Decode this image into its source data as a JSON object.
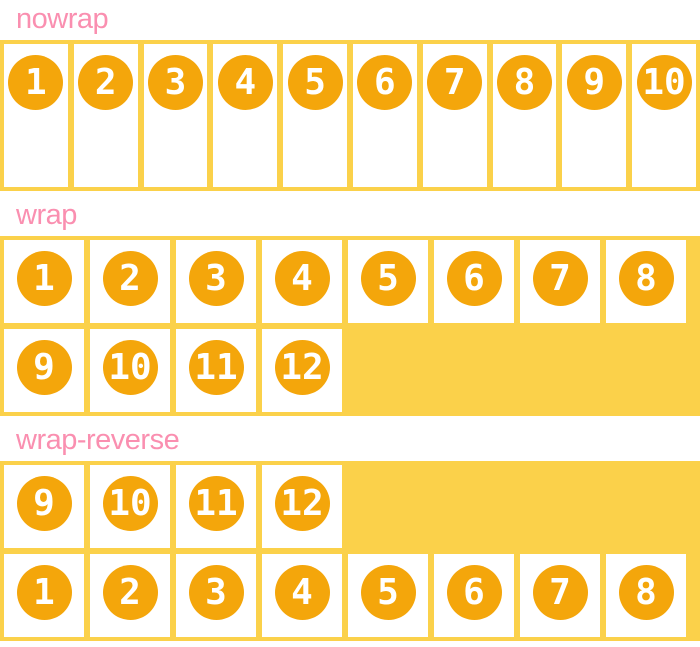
{
  "colors": {
    "container_yellow": "#fbd14a",
    "circle_orange": "#f4a60b",
    "label_pink": "#fa8fb0",
    "item_white": "#ffffff",
    "number_text": "#ffffff"
  },
  "sections": [
    {
      "label": "nowrap",
      "flex_wrap": "nowrap",
      "items": [
        "1",
        "2",
        "3",
        "4",
        "5",
        "6",
        "7",
        "8",
        "9",
        "10"
      ]
    },
    {
      "label": "wrap",
      "flex_wrap": "wrap",
      "items": [
        "1",
        "2",
        "3",
        "4",
        "5",
        "6",
        "7",
        "8",
        "9",
        "10",
        "11",
        "12"
      ]
    },
    {
      "label": "wrap-reverse",
      "flex_wrap": "wrap-reverse",
      "items": [
        "1",
        "2",
        "3",
        "4",
        "5",
        "6",
        "7",
        "8",
        "9",
        "10",
        "11",
        "12"
      ]
    }
  ]
}
